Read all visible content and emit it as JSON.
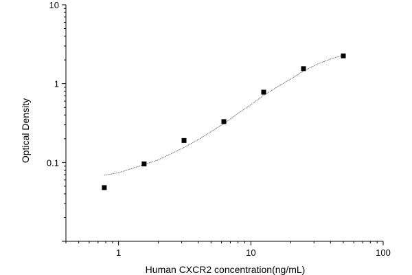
{
  "chart_data": {
    "type": "scatter",
    "title": "",
    "xlabel": "Human CXCR2 concentration(ng/mL)",
    "ylabel": "Optical Density",
    "xscale": "log",
    "yscale": "log",
    "xlim": [
      0.4,
      100
    ],
    "ylim": [
      0.01,
      10
    ],
    "grid": false,
    "legend": "none",
    "x_ticks": [
      {
        "value": 1,
        "label": "1"
      },
      {
        "value": 10,
        "label": "10"
      },
      {
        "value": 100,
        "label": "100"
      }
    ],
    "y_ticks": [
      {
        "value": 0.1,
        "label": "0.1"
      },
      {
        "value": 1,
        "label": "1"
      },
      {
        "value": 10,
        "label": "10"
      }
    ],
    "series": [
      {
        "marker": "square",
        "color": "#000000",
        "points": [
          {
            "x": 0.78,
            "y": 0.048
          },
          {
            "x": 1.56,
            "y": 0.096
          },
          {
            "x": 3.125,
            "y": 0.19
          },
          {
            "x": 6.25,
            "y": 0.33
          },
          {
            "x": 12.5,
            "y": 0.78
          },
          {
            "x": 25,
            "y": 1.55
          },
          {
            "x": 50,
            "y": 2.25
          }
        ]
      }
    ],
    "fit_curve": {
      "style": "dotted",
      "color": "#555555",
      "points": [
        {
          "x": 0.78,
          "y": 0.069
        },
        {
          "x": 1,
          "y": 0.074
        },
        {
          "x": 1.56,
          "y": 0.094
        },
        {
          "x": 2,
          "y": 0.108
        },
        {
          "x": 3.125,
          "y": 0.155
        },
        {
          "x": 4,
          "y": 0.195
        },
        {
          "x": 6.25,
          "y": 0.31
        },
        {
          "x": 8,
          "y": 0.42
        },
        {
          "x": 10,
          "y": 0.54
        },
        {
          "x": 12.5,
          "y": 0.71
        },
        {
          "x": 16,
          "y": 0.92
        },
        {
          "x": 20,
          "y": 1.14
        },
        {
          "x": 25,
          "y": 1.45
        },
        {
          "x": 32,
          "y": 1.78
        },
        {
          "x": 40,
          "y": 2.05
        },
        {
          "x": 50,
          "y": 2.3
        }
      ]
    }
  }
}
